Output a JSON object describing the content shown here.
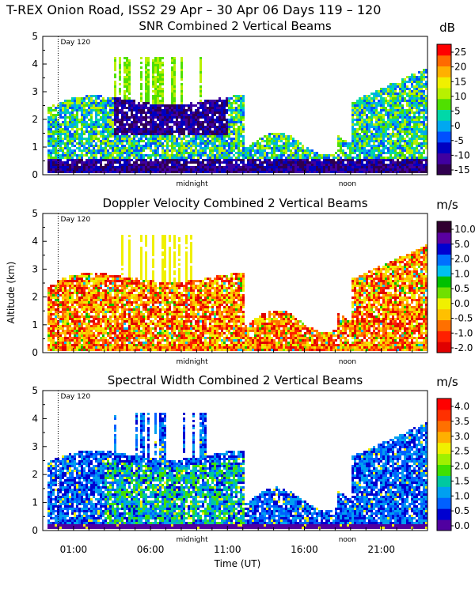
{
  "header": {
    "title": "T-REX Onion Road, ISS2  29 Apr – 30 Apr 06 Days 119 – 120"
  },
  "shared": {
    "ylabel": "Altitude (km)",
    "xlabel": "Time (UT)",
    "x_ticks": [
      "01:00",
      "06:00",
      "11:00",
      "16:00",
      "21:00"
    ],
    "x_tick_hours": [
      1,
      6,
      11,
      16,
      21
    ],
    "midnight_label": "midnight",
    "noon_label": "noon",
    "day_marker": "Day 120",
    "y_ticks": [
      "0",
      "1",
      "2",
      "3",
      "4",
      "5"
    ],
    "xlim": [
      -1,
      24
    ],
    "ylim": [
      0,
      5
    ]
  },
  "chart_data": [
    {
      "type": "heatmap",
      "title": "SNR Combined 2 Vertical Beams",
      "colorbar_unit": "dB",
      "colorbar_labels": [
        "25",
        "20",
        "15",
        "10",
        "5",
        "0",
        "-5",
        "-10",
        "-15"
      ],
      "colorbar_colors": [
        "#ff0000",
        "#ff6a00",
        "#ffb000",
        "#f0f000",
        "#b8f000",
        "#50e000",
        "#00d8a8",
        "#00a8f0",
        "#0050ff",
        "#0000c0",
        "#4000a0",
        "#300050"
      ],
      "xlim": [
        -1,
        24
      ],
      "ylim": [
        0,
        5
      ],
      "xlabel": "",
      "ylabel": "Altitude (km)"
    },
    {
      "type": "heatmap",
      "title": "Doppler Velocity Combined 2 Vertical Beams",
      "colorbar_unit": "m/s",
      "colorbar_labels": [
        "10.0",
        "5.0",
        "2.0",
        "1.0",
        "0.5",
        "0.0",
        "-0.5",
        "-1.0",
        "-2.0"
      ],
      "colorbar_colors": [
        "#300030",
        "#5a00a0",
        "#0000d0",
        "#0070ff",
        "#00c0f0",
        "#00c000",
        "#70e000",
        "#f0f000",
        "#ffc000",
        "#ff7000",
        "#ff2000",
        "#e00000"
      ],
      "xlim": [
        -1,
        24
      ],
      "ylim": [
        0,
        5
      ],
      "xlabel": "",
      "ylabel": "Altitude (km)"
    },
    {
      "type": "heatmap",
      "title": "Spectral Width Combined 2 Vertical Beams",
      "colorbar_unit": "m/s",
      "colorbar_labels": [
        "4.0",
        "3.5",
        "3.0",
        "2.5",
        "2.0",
        "1.5",
        "1.0",
        "0.5",
        "0.0"
      ],
      "colorbar_colors": [
        "#ff0000",
        "#ff3000",
        "#ff7000",
        "#ffb000",
        "#f0f000",
        "#a0f000",
        "#40e000",
        "#00c8a0",
        "#00a0f0",
        "#0060ff",
        "#0000d0",
        "#5000a0"
      ],
      "xlim": [
        -1,
        24
      ],
      "ylim": [
        0,
        5
      ],
      "xlabel": "Time (UT)",
      "ylabel": ""
    }
  ]
}
